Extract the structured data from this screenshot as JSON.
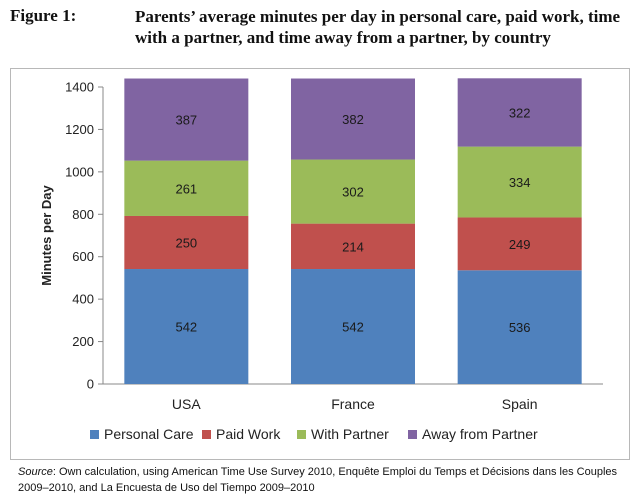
{
  "figure": {
    "label": "Figure 1:",
    "title": "Parents’ average minutes per day in personal care, paid work, time with a partner, and time away from a partner, by country"
  },
  "source": {
    "prefix": "Source",
    "text": ": Own calculation, using American Time Use Survey 2010, Enquête Emploi du Temps et Décisions dans les Couples 2009–2010, and La Encuesta de Uso del Tiempo 2009–2010"
  },
  "chart_data": {
    "type": "bar",
    "stacked": true,
    "categories": [
      "USA",
      "France",
      "Spain"
    ],
    "series": [
      {
        "name": "Personal Care",
        "values": [
          542,
          542,
          536
        ],
        "color": "#4f81bd"
      },
      {
        "name": "Paid Work",
        "values": [
          250,
          214,
          249
        ],
        "color": "#c0504d"
      },
      {
        "name": "With Partner",
        "values": [
          261,
          302,
          334
        ],
        "color": "#9bbb59"
      },
      {
        "name": "Away from Partner",
        "values": [
          387,
          382,
          322
        ],
        "color": "#8064a2"
      }
    ],
    "ylabel": "Minutes per Day",
    "xlabel": "",
    "ylim": [
      0,
      1400
    ],
    "yticks": [
      0,
      200,
      400,
      600,
      800,
      1000,
      1200,
      1400
    ],
    "grid": false,
    "legend_position": "bottom"
  }
}
